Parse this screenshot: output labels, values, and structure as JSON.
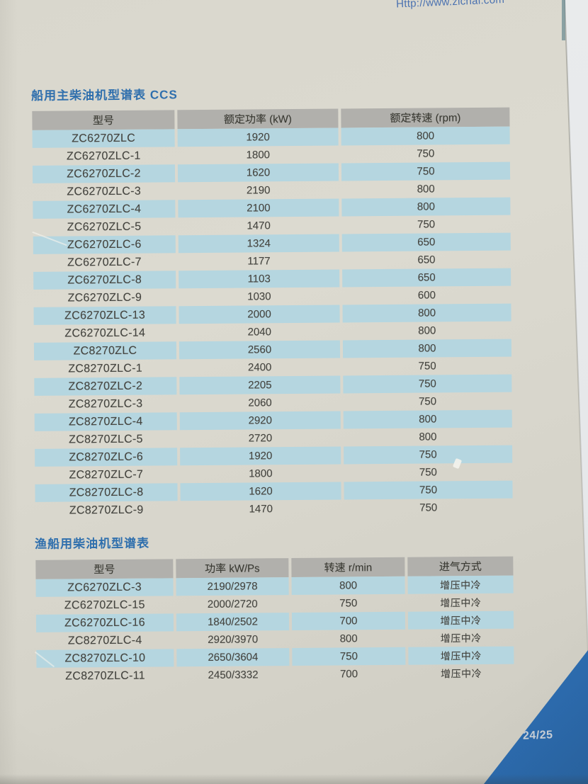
{
  "header": {
    "url": "Http://www.zichai.com"
  },
  "tables": [
    {
      "title": "船用主柴油机型谱表 CCS",
      "headers": [
        "型号",
        "额定功率 (kW)",
        "额定转速 (rpm)"
      ],
      "rows": [
        [
          "ZC6270ZLC",
          "1920",
          "800"
        ],
        [
          "ZC6270ZLC-1",
          "1800",
          "750"
        ],
        [
          "ZC6270ZLC-2",
          "1620",
          "750"
        ],
        [
          "ZC6270ZLC-3",
          "2190",
          "800"
        ],
        [
          "ZC6270ZLC-4",
          "2100",
          "800"
        ],
        [
          "ZC6270ZLC-5",
          "1470",
          "750"
        ],
        [
          "ZC6270ZLC-6",
          "1324",
          "650"
        ],
        [
          "ZC6270ZLC-7",
          "1177",
          "650"
        ],
        [
          "ZC6270ZLC-8",
          "1103",
          "650"
        ],
        [
          "ZC6270ZLC-9",
          "1030",
          "600"
        ],
        [
          "ZC6270ZLC-13",
          "2000",
          "800"
        ],
        [
          "ZC6270ZLC-14",
          "2040",
          "800"
        ],
        [
          "ZC8270ZLC",
          "2560",
          "800"
        ],
        [
          "ZC8270ZLC-1",
          "2400",
          "750"
        ],
        [
          "ZC8270ZLC-2",
          "2205",
          "750"
        ],
        [
          "ZC8270ZLC-3",
          "2060",
          "750"
        ],
        [
          "ZC8270ZLC-4",
          "2920",
          "800"
        ],
        [
          "ZC8270ZLC-5",
          "2720",
          "800"
        ],
        [
          "ZC8270ZLC-6",
          "1920",
          "750"
        ],
        [
          "ZC8270ZLC-7",
          "1800",
          "750"
        ],
        [
          "ZC8270ZLC-8",
          "1620",
          "750"
        ],
        [
          "ZC8270ZLC-9",
          "1470",
          "750"
        ]
      ]
    },
    {
      "title": "渔船用柴油机型谱表",
      "headers": [
        "型号",
        "功率 kW/Ps",
        "转速 r/min",
        "进气方式"
      ],
      "rows": [
        [
          "ZC6270ZLC-3",
          "2190/2978",
          "800",
          "增压中冷"
        ],
        [
          "ZC6270ZLC-15",
          "2000/2720",
          "750",
          "增压中冷"
        ],
        [
          "ZC6270ZLC-16",
          "1840/2502",
          "700",
          "增压中冷"
        ],
        [
          "ZC8270ZLC-4",
          "2920/3970",
          "800",
          "增压中冷"
        ],
        [
          "ZC8270ZLC-10",
          "2650/3604",
          "750",
          "增压中冷"
        ],
        [
          "ZC8270ZLC-11",
          "2450/3332",
          "700",
          "增压中冷"
        ]
      ]
    }
  ],
  "footer": {
    "page_number": "24/25"
  },
  "colors": {
    "title_blue": "#2f6fad",
    "row_blue": "#b5d6e0",
    "header_gray": "#b1b0ac",
    "triangle_blue": "#2b6aad",
    "url_blue": "#4a71b0",
    "page_bg": "#d8d6cc"
  }
}
